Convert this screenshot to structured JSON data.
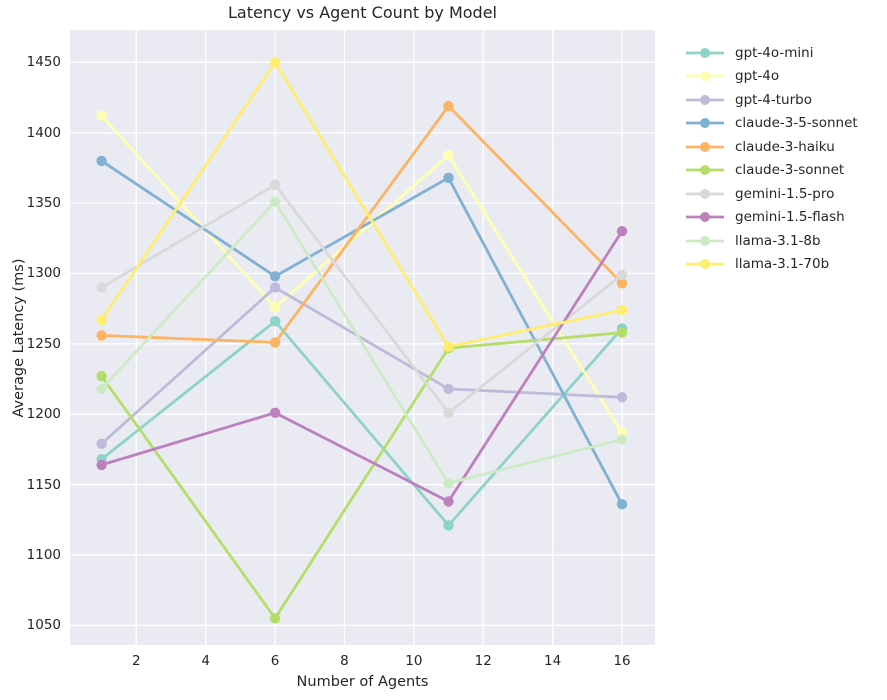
{
  "chart_data": {
    "type": "line",
    "title": "Latency vs Agent Count by Model",
    "xlabel": "Number of Agents",
    "ylabel": "Average Latency (ms)",
    "x": [
      1,
      6,
      11,
      16
    ],
    "series": [
      {
        "name": "gpt-4o-mini",
        "color": "#8dd3c7",
        "values": [
          1168,
          1266,
          1121,
          1261
        ]
      },
      {
        "name": "gpt-4o",
        "color": "#ffffb3",
        "values": [
          1412,
          1276,
          1384,
          1187
        ]
      },
      {
        "name": "gpt-4-turbo",
        "color": "#bebada",
        "values": [
          1179,
          1290,
          1218,
          1212
        ]
      },
      {
        "name": "claude-3-5-sonnet",
        "color": "#80b1d3",
        "values": [
          1380,
          1298,
          1368,
          1136
        ]
      },
      {
        "name": "claude-3-haiku",
        "color": "#fdb462",
        "values": [
          1256,
          1251,
          1419,
          1293
        ]
      },
      {
        "name": "claude-3-sonnet",
        "color": "#b3de69",
        "values": [
          1227,
          1055,
          1247,
          1258
        ]
      },
      {
        "name": "gemini-1.5-pro",
        "color": "#d9d9d9",
        "values": [
          1290,
          1363,
          1201,
          1299
        ]
      },
      {
        "name": "gemini-1.5-flash",
        "color": "#bc80bd",
        "values": [
          1164,
          1201,
          1138,
          1330
        ]
      },
      {
        "name": "llama-3.1-8b",
        "color": "#ccebc5",
        "values": [
          1218,
          1351,
          1151,
          1182
        ]
      },
      {
        "name": "llama-3.1-70b",
        "color": "#ffed6f",
        "values": [
          1267,
          1450,
          1248,
          1274
        ]
      }
    ],
    "xticks": [
      2,
      4,
      6,
      8,
      10,
      12,
      14,
      16
    ],
    "yticks": [
      1050,
      1100,
      1150,
      1200,
      1250,
      1300,
      1350,
      1400,
      1450
    ],
    "xlim": [
      0.09,
      16.95
    ],
    "ylim": [
      1036,
      1473
    ],
    "grid": true,
    "legend_position": "right",
    "plot_bg": "#eaeaf2",
    "grid_color": "#ffffff",
    "text_color": "#262626"
  }
}
